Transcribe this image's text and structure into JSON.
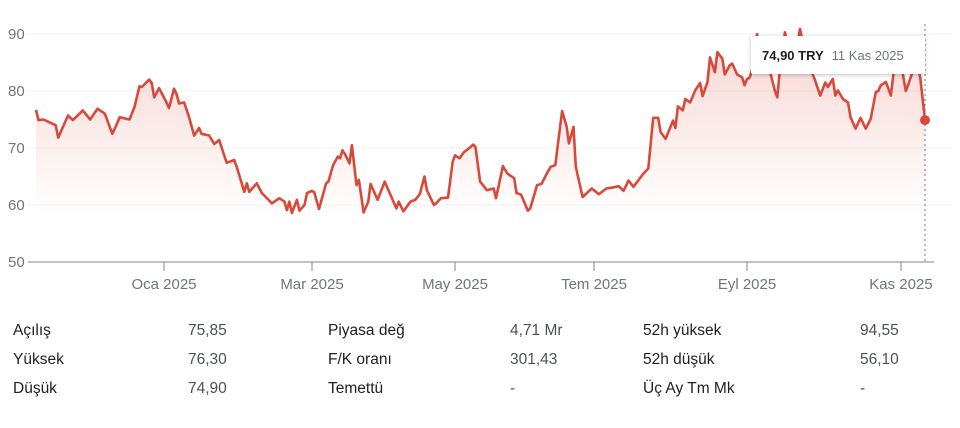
{
  "chart_data": {
    "type": "area",
    "currency": "TRY",
    "ylim": [
      50,
      90
    ],
    "y_ticks": [
      "50",
      "60",
      "70",
      "80",
      "90"
    ],
    "x_ticks": [
      {
        "date": "2025-01-01",
        "label": "Oca 2025"
      },
      {
        "date": "2025-03-01",
        "label": "Mar 2025"
      },
      {
        "date": "2025-05-01",
        "label": "May 2025"
      },
      {
        "date": "2025-07-01",
        "label": "Tem 2025"
      },
      {
        "date": "2025-09-01",
        "label": "Eyl 2025"
      },
      {
        "date": "2025-11-01",
        "label": "Kas 2025"
      }
    ],
    "grid": true,
    "line_color": "#d9493a",
    "points": [
      [
        "2024-11-10",
        76.7
      ],
      [
        "2024-11-11",
        74.9
      ],
      [
        "2024-11-13",
        75.0
      ],
      [
        "2024-11-18",
        74.0
      ],
      [
        "2024-11-19",
        71.8
      ],
      [
        "2024-11-23",
        75.7
      ],
      [
        "2024-11-25",
        74.9
      ],
      [
        "2024-11-29",
        76.6
      ],
      [
        "2024-12-02",
        75.0
      ],
      [
        "2024-12-05",
        76.9
      ],
      [
        "2024-12-08",
        76.0
      ],
      [
        "2024-12-11",
        72.5
      ],
      [
        "2024-12-12",
        73.4
      ],
      [
        "2024-12-14",
        75.4
      ],
      [
        "2024-12-18",
        75.0
      ],
      [
        "2024-12-20",
        77.2
      ],
      [
        "2024-12-22",
        80.8
      ],
      [
        "2024-12-23",
        80.7
      ],
      [
        "2024-12-26",
        82.0
      ],
      [
        "2024-12-27",
        81.4
      ],
      [
        "2024-12-28",
        78.9
      ],
      [
        "2024-12-30",
        80.5
      ],
      [
        "2025-01-02",
        78.0
      ],
      [
        "2025-01-03",
        77.0
      ],
      [
        "2025-01-05",
        80.4
      ],
      [
        "2025-01-06",
        79.5
      ],
      [
        "2025-01-07",
        77.8
      ],
      [
        "2025-01-09",
        78.0
      ],
      [
        "2025-01-11",
        75.4
      ],
      [
        "2025-01-13",
        72.2
      ],
      [
        "2025-01-15",
        73.5
      ],
      [
        "2025-01-16",
        72.5
      ],
      [
        "2025-01-19",
        72.2
      ],
      [
        "2025-01-21",
        70.7
      ],
      [
        "2025-01-23",
        71.4
      ],
      [
        "2025-01-25",
        68.7
      ],
      [
        "2025-01-26",
        67.4
      ],
      [
        "2025-01-29",
        67.9
      ],
      [
        "2025-01-30",
        66.7
      ],
      [
        "2025-02-02",
        62.3
      ],
      [
        "2025-02-03",
        63.8
      ],
      [
        "2025-02-04",
        62.3
      ],
      [
        "2025-02-07",
        63.8
      ],
      [
        "2025-02-09",
        62.1
      ],
      [
        "2025-02-13",
        60.3
      ],
      [
        "2025-02-16",
        61.2
      ],
      [
        "2025-02-18",
        60.6
      ],
      [
        "2025-02-19",
        59.1
      ],
      [
        "2025-02-20",
        60.6
      ],
      [
        "2025-02-21",
        58.6
      ],
      [
        "2025-02-23",
        60.9
      ],
      [
        "2025-02-24",
        59.0
      ],
      [
        "2025-02-26",
        60.0
      ],
      [
        "2025-02-27",
        62.1
      ],
      [
        "2025-03-01",
        62.5
      ],
      [
        "2025-03-02",
        62.2
      ],
      [
        "2025-03-04",
        59.3
      ],
      [
        "2025-03-07",
        63.8
      ],
      [
        "2025-03-08",
        64.1
      ],
      [
        "2025-03-10",
        67.0
      ],
      [
        "2025-03-12",
        68.5
      ],
      [
        "2025-03-13",
        68.2
      ],
      [
        "2025-03-14",
        69.6
      ],
      [
        "2025-03-15",
        69.0
      ],
      [
        "2025-03-17",
        67.3
      ],
      [
        "2025-03-18",
        70.5
      ],
      [
        "2025-03-20",
        63.5
      ],
      [
        "2025-03-21",
        64.4
      ],
      [
        "2025-03-23",
        58.7
      ],
      [
        "2025-03-25",
        60.6
      ],
      [
        "2025-03-26",
        63.7
      ],
      [
        "2025-03-29",
        60.9
      ],
      [
        "2025-04-01",
        64.1
      ],
      [
        "2025-04-06",
        59.4
      ],
      [
        "2025-04-07",
        60.6
      ],
      [
        "2025-04-09",
        58.9
      ],
      [
        "2025-04-12",
        60.6
      ],
      [
        "2025-04-14",
        60.9
      ],
      [
        "2025-04-16",
        61.9
      ],
      [
        "2025-04-18",
        65.0
      ],
      [
        "2025-04-19",
        62.6
      ],
      [
        "2025-04-22",
        60.0
      ],
      [
        "2025-04-23",
        60.3
      ],
      [
        "2025-04-25",
        61.2
      ],
      [
        "2025-04-28",
        61.3
      ],
      [
        "2025-04-30",
        67.6
      ],
      [
        "2025-05-01",
        68.7
      ],
      [
        "2025-05-03",
        68.2
      ],
      [
        "2025-05-05",
        69.3
      ],
      [
        "2025-05-07",
        69.9
      ],
      [
        "2025-05-09",
        70.6
      ],
      [
        "2025-05-10",
        70.2
      ],
      [
        "2025-05-12",
        64.1
      ],
      [
        "2025-05-15",
        62.6
      ],
      [
        "2025-05-18",
        62.9
      ],
      [
        "2025-05-19",
        61.2
      ],
      [
        "2025-05-22",
        66.8
      ],
      [
        "2025-05-24",
        65.5
      ],
      [
        "2025-05-27",
        64.7
      ],
      [
        "2025-05-28",
        62.1
      ],
      [
        "2025-05-30",
        61.8
      ],
      [
        "2025-06-02",
        59.0
      ],
      [
        "2025-06-03",
        59.4
      ],
      [
        "2025-06-05",
        62.1
      ],
      [
        "2025-06-06",
        63.5
      ],
      [
        "2025-06-08",
        63.7
      ],
      [
        "2025-06-10",
        65.3
      ],
      [
        "2025-06-12",
        66.7
      ],
      [
        "2025-06-14",
        67.0
      ],
      [
        "2025-06-17",
        76.5
      ],
      [
        "2025-06-19",
        73.7
      ],
      [
        "2025-06-20",
        70.8
      ],
      [
        "2025-06-22",
        73.7
      ],
      [
        "2025-06-23",
        66.7
      ],
      [
        "2025-06-26",
        61.4
      ],
      [
        "2025-06-30",
        62.9
      ],
      [
        "2025-07-03",
        61.9
      ],
      [
        "2025-07-06",
        62.9
      ],
      [
        "2025-07-09",
        63.1
      ],
      [
        "2025-07-11",
        63.3
      ],
      [
        "2025-07-13",
        62.5
      ],
      [
        "2025-07-15",
        64.3
      ],
      [
        "2025-07-17",
        63.2
      ],
      [
        "2025-07-21",
        65.5
      ],
      [
        "2025-07-23",
        66.4
      ],
      [
        "2025-07-25",
        75.3
      ],
      [
        "2025-07-27",
        75.3
      ],
      [
        "2025-07-28",
        72.8
      ],
      [
        "2025-07-30",
        71.6
      ],
      [
        "2025-08-02",
        74.8
      ],
      [
        "2025-08-03",
        73.5
      ],
      [
        "2025-08-04",
        77.3
      ],
      [
        "2025-08-06",
        76.6
      ],
      [
        "2025-08-07",
        78.6
      ],
      [
        "2025-08-09",
        78.0
      ],
      [
        "2025-08-11",
        80.1
      ],
      [
        "2025-08-13",
        81.4
      ],
      [
        "2025-08-14",
        79.1
      ],
      [
        "2025-08-16",
        81.6
      ],
      [
        "2025-08-17",
        85.9
      ],
      [
        "2025-08-19",
        83.3
      ],
      [
        "2025-08-20",
        86.8
      ],
      [
        "2025-08-22",
        85.7
      ],
      [
        "2025-08-23",
        82.9
      ],
      [
        "2025-08-25",
        84.5
      ],
      [
        "2025-08-26",
        84.8
      ],
      [
        "2025-08-28",
        82.9
      ],
      [
        "2025-08-30",
        82.4
      ],
      [
        "2025-08-31",
        81.0
      ],
      [
        "2025-09-01",
        82.1
      ],
      [
        "2025-09-02",
        82.3
      ],
      [
        "2025-09-03",
        83.6
      ],
      [
        "2025-09-05",
        90.0
      ],
      [
        "2025-09-06",
        84.8
      ],
      [
        "2025-09-08",
        85.4
      ],
      [
        "2025-09-10",
        83.6
      ],
      [
        "2025-09-12",
        80.1
      ],
      [
        "2025-09-13",
        78.9
      ],
      [
        "2025-09-14",
        83.6
      ],
      [
        "2025-09-16",
        90.3
      ],
      [
        "2025-09-18",
        87.1
      ],
      [
        "2025-09-20",
        85.9
      ],
      [
        "2025-09-22",
        90.9
      ],
      [
        "2025-09-23",
        88.8
      ],
      [
        "2025-09-25",
        85.4
      ],
      [
        "2025-09-27",
        83.0
      ],
      [
        "2025-09-28",
        81.8
      ],
      [
        "2025-09-30",
        79.2
      ],
      [
        "2025-10-02",
        81.5
      ],
      [
        "2025-10-03",
        80.7
      ],
      [
        "2025-10-05",
        82.1
      ],
      [
        "2025-10-06",
        79.2
      ],
      [
        "2025-10-07",
        80.1
      ],
      [
        "2025-10-09",
        78.6
      ],
      [
        "2025-10-11",
        78.0
      ],
      [
        "2025-10-12",
        75.4
      ],
      [
        "2025-10-14",
        73.4
      ],
      [
        "2025-10-16",
        75.3
      ],
      [
        "2025-10-18",
        73.4
      ],
      [
        "2025-10-20",
        75.1
      ],
      [
        "2025-10-22",
        79.8
      ],
      [
        "2025-10-23",
        80.0
      ],
      [
        "2025-10-24",
        81.0
      ],
      [
        "2025-10-26",
        81.6
      ],
      [
        "2025-10-28",
        79.2
      ],
      [
        "2025-10-29",
        83.0
      ],
      [
        "2025-11-01",
        84.8
      ],
      [
        "2025-11-03",
        80.0
      ],
      [
        "2025-11-04",
        81.1
      ],
      [
        "2025-11-06",
        83.6
      ],
      [
        "2025-11-08",
        84.2
      ],
      [
        "2025-11-09",
        82.4
      ],
      [
        "2025-11-11",
        74.9
      ]
    ],
    "tooltip": {
      "price": "74,90 TRY",
      "date": "11 Kas 2025"
    }
  },
  "stats": [
    [
      {
        "label": "Açılış",
        "value": "75,85"
      },
      {
        "label": "Piyasa değ",
        "value": "4,71 Mr"
      },
      {
        "label": "52h yüksek",
        "value": "94,55"
      }
    ],
    [
      {
        "label": "Yüksek",
        "value": "76,30"
      },
      {
        "label": "F/K oranı",
        "value": "301,43"
      },
      {
        "label": "52h düşük",
        "value": "56,10"
      }
    ],
    [
      {
        "label": "Düşük",
        "value": "74,90"
      },
      {
        "label": "Temettü",
        "value": "-"
      },
      {
        "label": "Üç Ay Tm Mk",
        "value": "-"
      }
    ]
  ]
}
